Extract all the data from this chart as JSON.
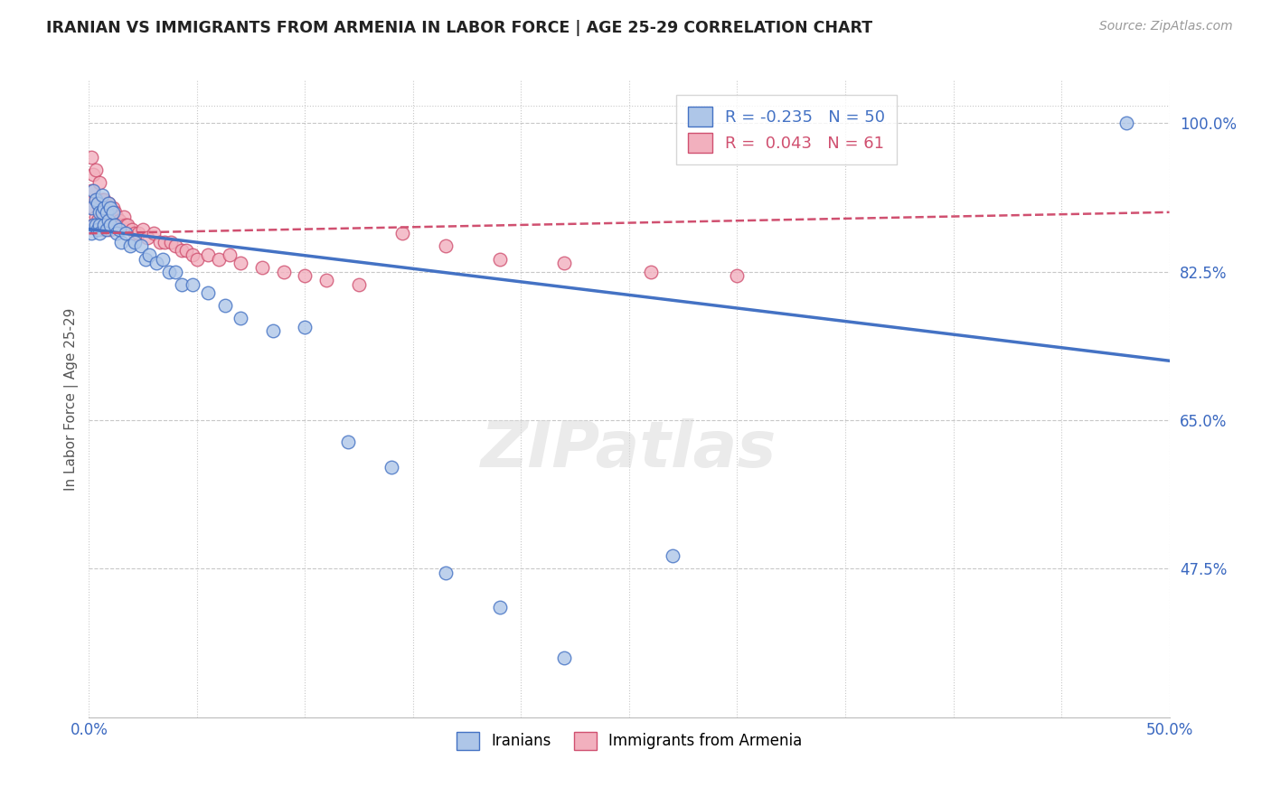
{
  "title": "IRANIAN VS IMMIGRANTS FROM ARMENIA IN LABOR FORCE | AGE 25-29 CORRELATION CHART",
  "source": "Source: ZipAtlas.com",
  "ylabel": "In Labor Force | Age 25-29",
  "x_min": 0.0,
  "x_max": 0.5,
  "y_min": 0.3,
  "y_max": 1.05,
  "x_tick_positions": [
    0.0,
    0.05,
    0.1,
    0.15,
    0.2,
    0.25,
    0.3,
    0.35,
    0.4,
    0.45,
    0.5
  ],
  "x_tick_labels": [
    "0.0%",
    "",
    "",
    "",
    "",
    "",
    "",
    "",
    "",
    "",
    "50.0%"
  ],
  "y_tick_values_right": [
    1.0,
    0.825,
    0.65,
    0.475
  ],
  "y_tick_labels_right": [
    "100.0%",
    "82.5%",
    "65.0%",
    "47.5%"
  ],
  "grid_color": "#c8c8c8",
  "background_color": "#ffffff",
  "iranians_color": "#aec6e8",
  "iranians_edge_color": "#4472c4",
  "armenians_color": "#f2b0be",
  "armenians_edge_color": "#d05070",
  "iranian_line_color": "#4472c4",
  "armenian_line_color": "#d05070",
  "R_iranian": -0.235,
  "N_iranian": 50,
  "R_armenian": 0.043,
  "N_armenian": 61,
  "legend_label_iranian": "Iranians",
  "legend_label_armenian": "Immigrants from Armenia",
  "iranians_x": [
    0.001,
    0.001,
    0.002,
    0.002,
    0.003,
    0.003,
    0.004,
    0.004,
    0.005,
    0.005,
    0.005,
    0.006,
    0.006,
    0.007,
    0.007,
    0.008,
    0.008,
    0.009,
    0.009,
    0.01,
    0.01,
    0.011,
    0.012,
    0.013,
    0.014,
    0.015,
    0.017,
    0.019,
    0.021,
    0.024,
    0.026,
    0.028,
    0.031,
    0.034,
    0.037,
    0.04,
    0.043,
    0.048,
    0.055,
    0.063,
    0.07,
    0.085,
    0.1,
    0.12,
    0.14,
    0.165,
    0.19,
    0.22,
    0.27,
    0.48
  ],
  "iranians_y": [
    0.9,
    0.87,
    0.92,
    0.88,
    0.91,
    0.88,
    0.905,
    0.875,
    0.895,
    0.88,
    0.87,
    0.915,
    0.895,
    0.9,
    0.88,
    0.895,
    0.875,
    0.905,
    0.885,
    0.9,
    0.88,
    0.895,
    0.88,
    0.87,
    0.875,
    0.86,
    0.87,
    0.855,
    0.86,
    0.855,
    0.84,
    0.845,
    0.835,
    0.84,
    0.825,
    0.825,
    0.81,
    0.81,
    0.8,
    0.785,
    0.77,
    0.755,
    0.76,
    0.625,
    0.595,
    0.47,
    0.43,
    0.37,
    0.49,
    1.0
  ],
  "armenians_x": [
    0.001,
    0.001,
    0.002,
    0.002,
    0.002,
    0.003,
    0.003,
    0.003,
    0.004,
    0.004,
    0.005,
    0.005,
    0.006,
    0.006,
    0.007,
    0.007,
    0.007,
    0.008,
    0.008,
    0.009,
    0.009,
    0.01,
    0.01,
    0.011,
    0.011,
    0.012,
    0.013,
    0.014,
    0.015,
    0.016,
    0.017,
    0.018,
    0.02,
    0.021,
    0.023,
    0.025,
    0.027,
    0.03,
    0.033,
    0.035,
    0.038,
    0.04,
    0.043,
    0.045,
    0.048,
    0.05,
    0.055,
    0.06,
    0.065,
    0.07,
    0.08,
    0.09,
    0.1,
    0.11,
    0.125,
    0.145,
    0.165,
    0.19,
    0.22,
    0.26,
    0.3
  ],
  "armenians_y": [
    0.96,
    0.92,
    0.94,
    0.9,
    0.88,
    0.945,
    0.91,
    0.89,
    0.905,
    0.885,
    0.93,
    0.9,
    0.91,
    0.885,
    0.91,
    0.895,
    0.875,
    0.9,
    0.88,
    0.905,
    0.88,
    0.895,
    0.875,
    0.9,
    0.88,
    0.895,
    0.89,
    0.885,
    0.88,
    0.89,
    0.88,
    0.88,
    0.875,
    0.87,
    0.87,
    0.875,
    0.865,
    0.87,
    0.86,
    0.86,
    0.86,
    0.855,
    0.85,
    0.85,
    0.845,
    0.84,
    0.845,
    0.84,
    0.845,
    0.835,
    0.83,
    0.825,
    0.82,
    0.815,
    0.81,
    0.87,
    0.855,
    0.84,
    0.835,
    0.825,
    0.82
  ],
  "iranian_trendline_x": [
    0.0,
    0.5
  ],
  "iranian_trendline_y": [
    0.875,
    0.72
  ],
  "armenian_trendline_x": [
    0.0,
    0.5
  ],
  "armenian_trendline_y": [
    0.87,
    0.895
  ]
}
